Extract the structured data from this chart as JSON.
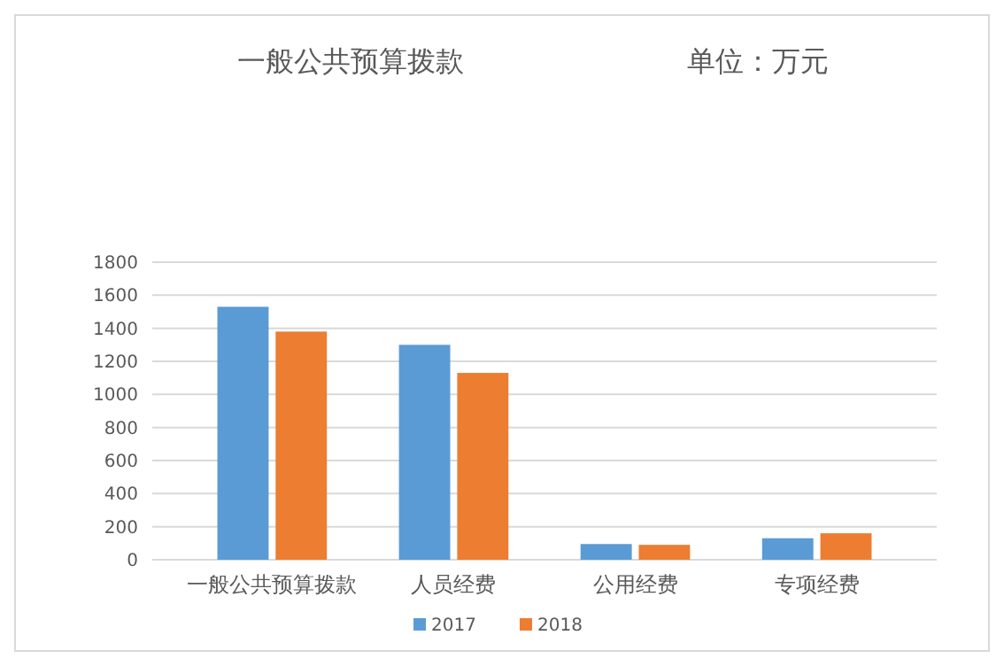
{
  "chart_data": {
    "type": "bar",
    "title": "一般公共预算拨款",
    "subtitle": "单位：万元",
    "categories": [
      "一般公共预算拨款",
      "人员经费",
      "公用经费",
      "专项经费"
    ],
    "series": [
      {
        "name": "2017",
        "color": "#5b9bd5",
        "values": [
          1530,
          1300,
          95,
          130
        ]
      },
      {
        "name": "2018",
        "color": "#ed7d31",
        "values": [
          1380,
          1130,
          90,
          160
        ]
      }
    ],
    "ylim": [
      0,
      1800
    ],
    "yticks": [
      0,
      200,
      400,
      600,
      800,
      1000,
      1200,
      1400,
      1600,
      1800
    ],
    "grid": "y",
    "legend": "bottom"
  }
}
